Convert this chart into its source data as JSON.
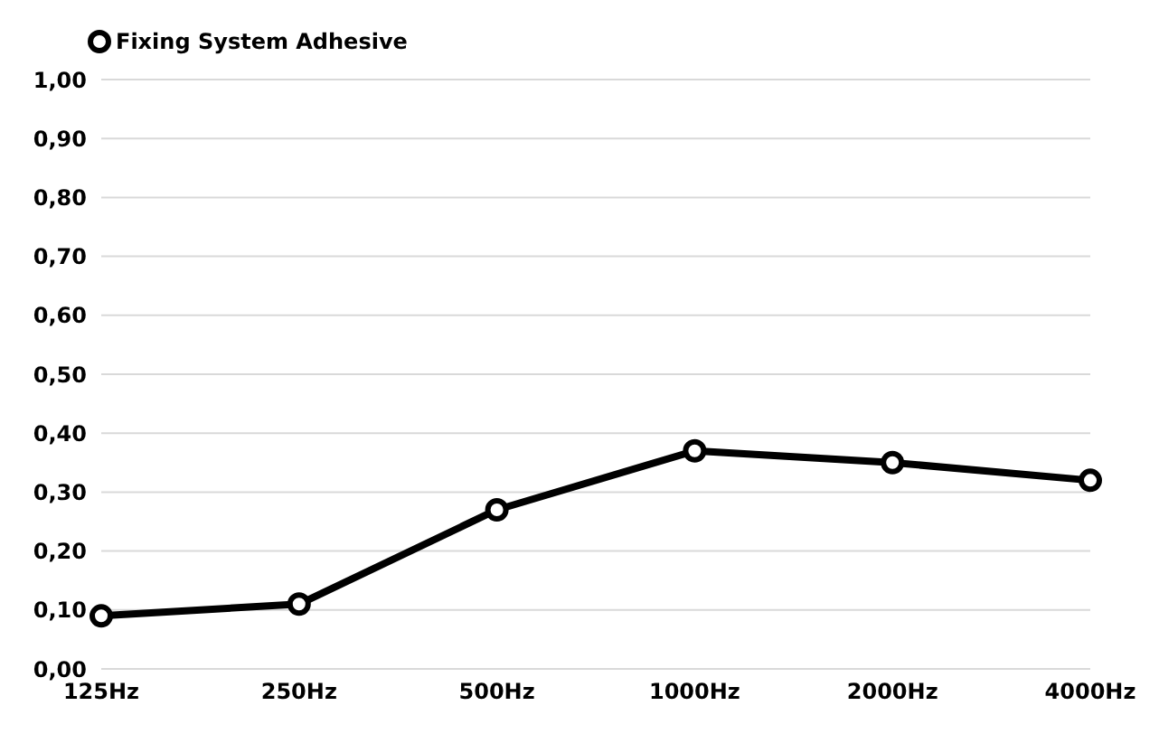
{
  "chart_data": {
    "type": "line",
    "categories": [
      "125Hz",
      "250Hz",
      "500Hz",
      "1000Hz",
      "2000Hz",
      "4000Hz"
    ],
    "series": [
      {
        "name": "Fixing System Adhesive",
        "color": "#000000",
        "values": [
          0.09,
          0.11,
          0.27,
          0.37,
          0.35,
          0.32
        ]
      }
    ],
    "ylim": [
      0,
      1
    ],
    "yticks": [
      {
        "value": 0,
        "label": "0,00"
      },
      {
        "value": 0.1,
        "label": "0,10"
      },
      {
        "value": 0.2,
        "label": "0,20"
      },
      {
        "value": 0.3,
        "label": "0,30"
      },
      {
        "value": 0.4,
        "label": "0,40"
      },
      {
        "value": 0.5,
        "label": "0,50"
      },
      {
        "value": 0.6,
        "label": "0,60"
      },
      {
        "value": 0.7,
        "label": "0,70"
      },
      {
        "value": 0.8,
        "label": "0,80"
      },
      {
        "value": 0.9,
        "label": "0,90"
      },
      {
        "value": 1,
        "label": "1,00"
      }
    ],
    "grid": "y",
    "legend": "top left",
    "marker": "circle",
    "line_style": "solid"
  }
}
